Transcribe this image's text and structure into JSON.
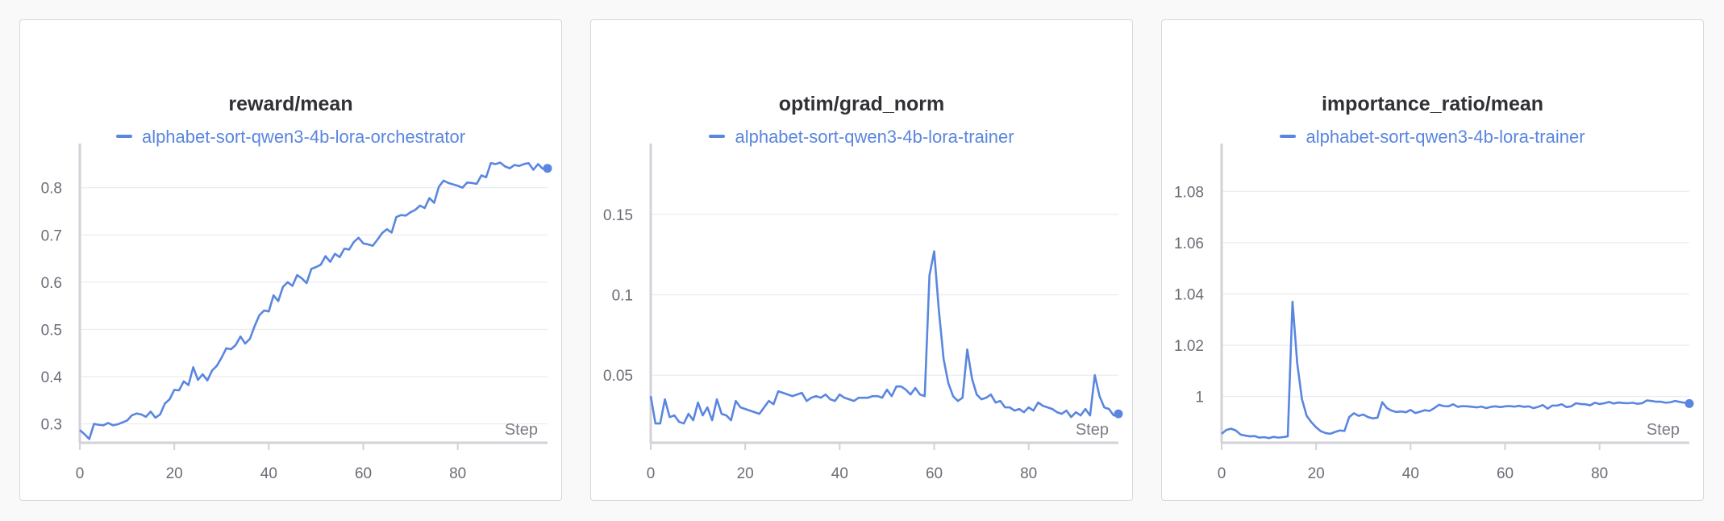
{
  "colors": {
    "series": "#5a86e0",
    "series_light": "#cfdcf6",
    "grid": "#ececf0",
    "axis": "#d2d2d8",
    "title": "#303036"
  },
  "chart_data": [
    {
      "type": "line",
      "title": "reward/mean",
      "legend": [
        "alphabet-sort-qwen3-4b-lora-orchestrator"
      ],
      "xlabel": "Step",
      "xlim": [
        0,
        99
      ],
      "ylim": [
        0.26,
        0.89
      ],
      "xticks": [
        0,
        20,
        40,
        60,
        80
      ],
      "yticks": [
        0.3,
        0.4,
        0.5,
        0.6,
        0.7,
        0.8
      ],
      "ytick_labels": [
        "0.3",
        "0.4",
        "0.5",
        "0.6",
        "0.7",
        "0.8"
      ],
      "grid": true,
      "series": [
        {
          "name": "alphabet-sort-qwen3-4b-lora-orchestrator",
          "x_start": 0,
          "values": [
            0.287,
            0.278,
            0.268,
            0.3,
            0.298,
            0.297,
            0.302,
            0.297,
            0.299,
            0.303,
            0.307,
            0.318,
            0.322,
            0.32,
            0.315,
            0.326,
            0.313,
            0.32,
            0.343,
            0.352,
            0.372,
            0.371,
            0.39,
            0.382,
            0.42,
            0.393,
            0.405,
            0.392,
            0.413,
            0.423,
            0.44,
            0.46,
            0.458,
            0.467,
            0.485,
            0.47,
            0.48,
            0.507,
            0.53,
            0.54,
            0.538,
            0.572,
            0.56,
            0.59,
            0.6,
            0.592,
            0.615,
            0.608,
            0.598,
            0.628,
            0.632,
            0.637,
            0.655,
            0.643,
            0.66,
            0.653,
            0.671,
            0.669,
            0.685,
            0.694,
            0.682,
            0.68,
            0.677,
            0.69,
            0.704,
            0.712,
            0.705,
            0.738,
            0.742,
            0.741,
            0.748,
            0.753,
            0.762,
            0.757,
            0.778,
            0.768,
            0.802,
            0.815,
            0.81,
            0.807,
            0.804,
            0.8,
            0.811,
            0.81,
            0.808,
            0.826,
            0.822,
            0.852,
            0.85,
            0.853,
            0.845,
            0.841,
            0.848,
            0.846,
            0.85,
            0.852,
            0.838,
            0.85,
            0.84,
            0.841
          ]
        }
      ]
    },
    {
      "type": "line",
      "title": "optim/grad_norm",
      "legend": [
        "alphabet-sort-qwen3-4b-lora-trainer"
      ],
      "xlabel": "Step",
      "xlim": [
        0,
        99
      ],
      "ylim": [
        0.008,
        0.193
      ],
      "xticks": [
        0,
        20,
        40,
        60,
        80
      ],
      "yticks": [
        0.05,
        0.1,
        0.15
      ],
      "ytick_labels": [
        "0.05",
        "0.1",
        "0.15"
      ],
      "grid": true,
      "series": [
        {
          "name": "alphabet-sort-qwen3-4b-lora-trainer",
          "x_start": 0,
          "values": [
            0.037,
            0.02,
            0.02,
            0.035,
            0.024,
            0.025,
            0.021,
            0.02,
            0.026,
            0.022,
            0.033,
            0.025,
            0.03,
            0.022,
            0.035,
            0.026,
            0.025,
            0.022,
            0.034,
            0.03,
            0.029,
            0.028,
            0.027,
            0.026,
            0.03,
            0.034,
            0.032,
            0.04,
            0.039,
            0.038,
            0.037,
            0.038,
            0.039,
            0.034,
            0.036,
            0.037,
            0.036,
            0.038,
            0.035,
            0.034,
            0.038,
            0.036,
            0.035,
            0.034,
            0.036,
            0.036,
            0.036,
            0.037,
            0.037,
            0.036,
            0.041,
            0.037,
            0.043,
            0.043,
            0.041,
            0.038,
            0.042,
            0.038,
            0.037,
            0.112,
            0.127,
            0.09,
            0.06,
            0.045,
            0.037,
            0.034,
            0.036,
            0.066,
            0.048,
            0.038,
            0.035,
            0.036,
            0.038,
            0.033,
            0.034,
            0.03,
            0.03,
            0.028,
            0.029,
            0.027,
            0.03,
            0.028,
            0.033,
            0.031,
            0.03,
            0.029,
            0.027,
            0.026,
            0.028,
            0.024,
            0.027,
            0.025,
            0.029,
            0.025,
            0.05,
            0.037,
            0.03,
            0.029,
            0.025,
            0.026
          ]
        }
      ]
    },
    {
      "type": "line",
      "title": "importance_ratio/mean",
      "legend": [
        "alphabet-sort-qwen3-4b-lora-trainer"
      ],
      "xlabel": "Step",
      "xlim": [
        0,
        99
      ],
      "ylim": [
        0.982,
        1.098
      ],
      "xticks": [
        0,
        20,
        40,
        60,
        80
      ],
      "yticks": [
        1.0,
        1.02,
        1.04,
        1.06,
        1.08
      ],
      "ytick_labels": [
        "1",
        "1.02",
        "1.04",
        "1.06",
        "1.08"
      ],
      "grid": true,
      "series": [
        {
          "name": "alphabet-sort-qwen3-4b-lora-trainer",
          "x_start": 0,
          "values": [
            0.9855,
            0.987,
            0.9875,
            0.9868,
            0.9852,
            0.9848,
            0.9845,
            0.9846,
            0.984,
            0.9842,
            0.9838,
            0.9843,
            0.984,
            0.9842,
            0.9845,
            1.037,
            1.013,
            0.999,
            0.9925,
            0.99,
            0.988,
            0.9865,
            0.9858,
            0.9855,
            0.9862,
            0.9868,
            0.9866,
            0.992,
            0.9935,
            0.9925,
            0.993,
            0.992,
            0.9915,
            0.9918,
            0.9978,
            0.9955,
            0.9945,
            0.994,
            0.9942,
            0.9939,
            0.9948,
            0.9936,
            0.9941,
            0.9947,
            0.9944,
            0.9955,
            0.9968,
            0.9963,
            0.9962,
            0.997,
            0.996,
            0.9963,
            0.9962,
            0.996,
            0.9958,
            0.9961,
            0.9955,
            0.996,
            0.9962,
            0.9959,
            0.9962,
            0.9963,
            0.9961,
            0.9964,
            0.996,
            0.9962,
            0.9955,
            0.996,
            0.9967,
            0.9953,
            0.9965,
            0.9965,
            0.997,
            0.9959,
            0.9962,
            0.9974,
            0.9971,
            0.997,
            0.9966,
            0.9976,
            0.9971,
            0.9974,
            0.9979,
            0.9973,
            0.9977,
            0.9975,
            0.9974,
            0.9976,
            0.9972,
            0.9974,
            0.9985,
            0.9983,
            0.998,
            0.998,
            0.9976,
            0.9978,
            0.9983,
            0.9979,
            0.9976,
            0.9973
          ]
        }
      ]
    }
  ]
}
